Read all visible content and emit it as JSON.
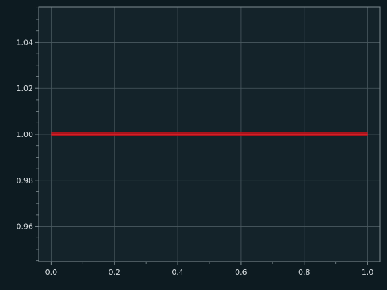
{
  "chart_data": {
    "type": "line",
    "title": "",
    "xlabel": "",
    "ylabel": "",
    "xlim": [
      -0.04,
      1.04
    ],
    "ylim": [
      0.9446,
      1.0554
    ],
    "grid": true,
    "legend": "none",
    "x_ticks": [
      0.0,
      0.2,
      0.4,
      0.6,
      0.8,
      1.0
    ],
    "x_tick_labels": [
      "0.0",
      "0.2",
      "0.4",
      "0.6",
      "0.8",
      "1.0"
    ],
    "x_minor_ticks": [
      0.1,
      0.3,
      0.5,
      0.7,
      0.9
    ],
    "y_ticks": [
      0.96,
      0.98,
      1.0,
      1.02,
      1.04
    ],
    "y_tick_labels": [
      "0.96",
      "0.98",
      "1.00",
      "1.02",
      "1.04"
    ],
    "y_minor_step": 0.005,
    "series": [
      {
        "x": [
          0.0,
          1.0
        ],
        "y": [
          1.0,
          1.0
        ],
        "color": "#c2121a"
      }
    ],
    "colors": {
      "figure_background": "#0d1b21",
      "plot_background": "#14232a",
      "grid": "#4a5a60",
      "axis": "#7f8d92",
      "text": "#d7dde0"
    }
  }
}
